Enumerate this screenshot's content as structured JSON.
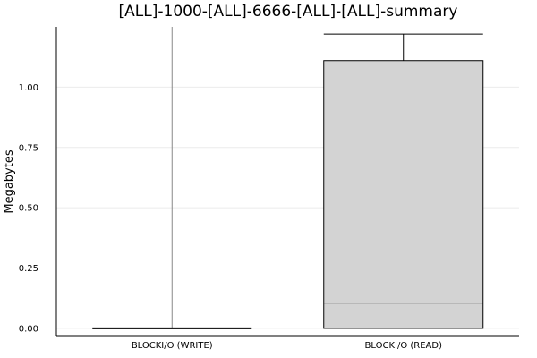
{
  "chart_data": {
    "type": "box",
    "title": "[ALL]-1000-[ALL]-6666-[ALL]-[ALL]-summary",
    "xlabel": "",
    "ylabel": "Megabytes",
    "ylim": [
      -0.03,
      1.25
    ],
    "yticks": [
      0.0,
      0.25,
      0.5,
      0.75,
      1.0
    ],
    "ytick_labels": [
      "0.00",
      "0.25",
      "0.50",
      "0.75",
      "1.00"
    ],
    "grid": true,
    "categories": [
      "BLOCKI/O (WRITE)",
      "BLOCKI/O (READ)"
    ],
    "boxes": [
      {
        "category": "BLOCKI/O (WRITE)",
        "min": 0.0,
        "q1": 0.0,
        "median": 0.0,
        "q3": 0.0,
        "max": 1.25
      },
      {
        "category": "BLOCKI/O (READ)",
        "min": 0.0,
        "q1": 0.0,
        "median": 0.105,
        "q3": 1.11,
        "max": 1.22
      }
    ],
    "colors": {
      "box_fill": "#d3d3d3",
      "line": "#000000",
      "grid": "#ebebeb"
    }
  }
}
